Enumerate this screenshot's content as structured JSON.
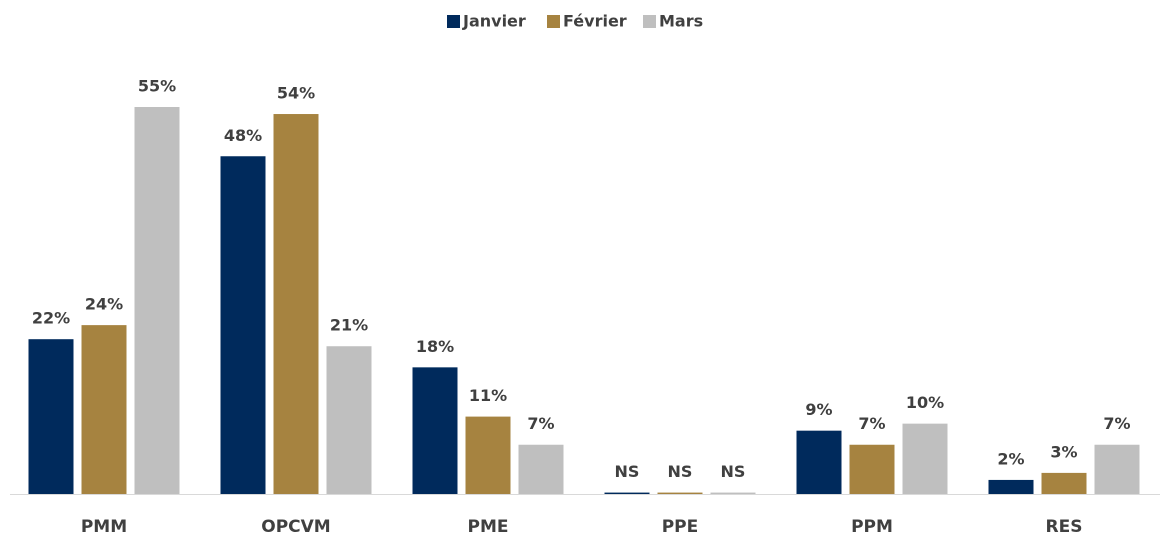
{
  "chart_data": {
    "type": "bar",
    "categories": [
      "PMM",
      "OPCVM",
      "PME",
      "PPE",
      "PPM",
      "RES"
    ],
    "series": [
      {
        "name": "Janvier",
        "color": "#002a5c",
        "values": [
          22,
          48,
          18,
          0.2,
          9,
          2
        ],
        "value_labels": [
          "22%",
          "48%",
          "18%",
          "NS",
          "9%",
          "2%"
        ]
      },
      {
        "name": "Février",
        "color": "#a68340",
        "values": [
          24,
          54,
          11,
          0.2,
          7,
          3
        ],
        "value_labels": [
          "24%",
          "54%",
          "11%",
          "NS",
          "7%",
          "3%"
        ]
      },
      {
        "name": "Mars",
        "color": "#bfbfbf",
        "values": [
          55,
          21,
          7,
          0.2,
          10,
          7
        ],
        "value_labels": [
          "55%",
          "21%",
          "7%",
          "NS",
          "10%",
          "7%"
        ]
      }
    ],
    "legend": "top"
  }
}
